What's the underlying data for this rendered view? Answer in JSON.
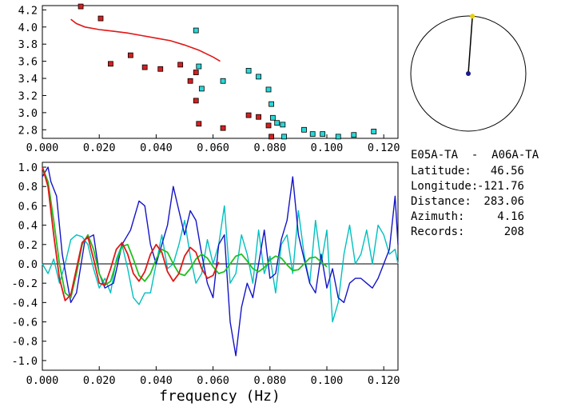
{
  "info_panel": {
    "station_pair": "E05A-TA  -  A06A-TA",
    "rows": [
      {
        "label": "Latitude:",
        "value": "46.56"
      },
      {
        "label": "Longitude:",
        "value": "-121.76"
      },
      {
        "label": "Distance:",
        "value": "283.06"
      },
      {
        "label": "Azimuth:",
        "value": "4.16"
      },
      {
        "label": "Records:",
        "value": "208"
      }
    ]
  },
  "azimuth_compass": {
    "azimuth_deg": 4.16,
    "colors": {
      "circle": "#000000",
      "needle": "#000000",
      "center": "#1a1a8c",
      "tip": "#e8d000"
    }
  },
  "chart_data": [
    {
      "type": "scatter",
      "xlim": [
        0.0,
        0.125
      ],
      "ylim": [
        2.7,
        4.25
      ],
      "x_ticks": [
        "0.000",
        "0.020",
        "0.040",
        "0.060",
        "0.080",
        "0.100",
        "0.120"
      ],
      "y_ticks": [
        "2.8",
        "3.0",
        "3.2",
        "3.4",
        "3.6",
        "3.8",
        "4.0",
        "4.2"
      ],
      "grid": false,
      "series": [
        {
          "kind": "points",
          "color": "#d42020",
          "points": [
            [
              0.0135,
              4.24
            ],
            [
              0.0205,
              4.1
            ],
            [
              0.024,
              3.57
            ],
            [
              0.031,
              3.67
            ],
            [
              0.036,
              3.53
            ],
            [
              0.0415,
              3.51
            ],
            [
              0.0485,
              3.56
            ],
            [
              0.052,
              3.37
            ],
            [
              0.054,
              3.47
            ],
            [
              0.054,
              3.14
            ],
            [
              0.055,
              2.87
            ],
            [
              0.0635,
              2.82
            ],
            [
              0.0725,
              2.97
            ],
            [
              0.076,
              2.95
            ],
            [
              0.0795,
              2.85
            ],
            [
              0.0805,
              2.72
            ]
          ]
        },
        {
          "kind": "points",
          "color": "#28d8d8",
          "points": [
            [
              0.054,
              3.96
            ],
            [
              0.055,
              3.54
            ],
            [
              0.056,
              3.28
            ],
            [
              0.0635,
              3.37
            ],
            [
              0.0725,
              3.49
            ],
            [
              0.076,
              3.42
            ],
            [
              0.0795,
              3.27
            ],
            [
              0.0805,
              3.1
            ],
            [
              0.081,
              2.94
            ],
            [
              0.0825,
              2.88
            ],
            [
              0.0845,
              2.86
            ],
            [
              0.085,
              2.72
            ],
            [
              0.092,
              2.8
            ],
            [
              0.095,
              2.75
            ],
            [
              0.0985,
              2.75
            ],
            [
              0.104,
              2.72
            ],
            [
              0.1095,
              2.74
            ],
            [
              0.1165,
              2.78
            ]
          ]
        },
        {
          "kind": "line",
          "color": "#e01818",
          "points": [
            [
              0.01,
              4.09
            ],
            [
              0.012,
              4.04
            ],
            [
              0.015,
              4.0
            ],
            [
              0.02,
              3.97
            ],
            [
              0.025,
              3.95
            ],
            [
              0.03,
              3.93
            ],
            [
              0.035,
              3.9
            ],
            [
              0.04,
              3.87
            ],
            [
              0.045,
              3.84
            ],
            [
              0.05,
              3.79
            ],
            [
              0.055,
              3.73
            ],
            [
              0.06,
              3.65
            ],
            [
              0.0625,
              3.6
            ]
          ]
        }
      ]
    },
    {
      "type": "line",
      "xlabel": "frequency (Hz)",
      "xlim": [
        0.0,
        0.125
      ],
      "ylim": [
        -1.1,
        1.05
      ],
      "x_ticks": [
        "0.000",
        "0.020",
        "0.040",
        "0.060",
        "0.080",
        "0.100",
        "0.120"
      ],
      "y_ticks": [
        "1.0",
        "0.8",
        "0.6",
        "0.4",
        "0.2",
        "0.0",
        "-0.2",
        "-0.4",
        "-0.6",
        "-0.8",
        "-1.0"
      ],
      "grid": false,
      "zero_line": true,
      "series": [
        {
          "color": "#00c0c0",
          "x": [
            0.0,
            0.002,
            0.004,
            0.006,
            0.008,
            0.01,
            0.012,
            0.014,
            0.016,
            0.018,
            0.02,
            0.022,
            0.024,
            0.026,
            0.028,
            0.03,
            0.032,
            0.034,
            0.036,
            0.038,
            0.04,
            0.042,
            0.044,
            0.046,
            0.048,
            0.05,
            0.052,
            0.054,
            0.056,
            0.058,
            0.06,
            0.062,
            0.064,
            0.066,
            0.068,
            0.07,
            0.072,
            0.074,
            0.076,
            0.078,
            0.08,
            0.082,
            0.084,
            0.086,
            0.088,
            0.09,
            0.092,
            0.094,
            0.096,
            0.098,
            0.1,
            0.102,
            0.104,
            0.106,
            0.108,
            0.11,
            0.112,
            0.114,
            0.116,
            0.118,
            0.12,
            0.122,
            0.124,
            0.125
          ],
          "y": [
            0.0,
            -0.1,
            0.05,
            -0.2,
            0.0,
            0.25,
            0.3,
            0.28,
            0.2,
            -0.05,
            -0.25,
            -0.15,
            -0.3,
            0.05,
            0.2,
            -0.05,
            -0.35,
            -0.42,
            -0.3,
            -0.3,
            0.0,
            0.3,
            -0.05,
            0.0,
            0.2,
            0.45,
            0.08,
            -0.2,
            -0.1,
            0.25,
            0.0,
            0.2,
            0.6,
            -0.2,
            -0.1,
            0.3,
            0.1,
            -0.2,
            0.35,
            -0.1,
            0.08,
            -0.3,
            0.2,
            0.3,
            -0.1,
            0.55,
            0.1,
            -0.2,
            0.45,
            0.0,
            0.35,
            -0.6,
            -0.4,
            0.1,
            0.4,
            0.0,
            0.1,
            0.35,
            0.0,
            0.4,
            0.3,
            0.1,
            0.15,
            0.0
          ]
        },
        {
          "color": "#1414c8",
          "x": [
            0.0,
            0.002,
            0.003,
            0.005,
            0.007,
            0.01,
            0.012,
            0.015,
            0.018,
            0.02,
            0.022,
            0.025,
            0.028,
            0.031,
            0.034,
            0.036,
            0.038,
            0.04,
            0.042,
            0.044,
            0.046,
            0.048,
            0.05,
            0.052,
            0.054,
            0.056,
            0.058,
            0.06,
            0.062,
            0.064,
            0.066,
            0.068,
            0.07,
            0.072,
            0.074,
            0.076,
            0.078,
            0.08,
            0.082,
            0.084,
            0.086,
            0.088,
            0.09,
            0.092,
            0.094,
            0.096,
            0.098,
            0.1,
            0.102,
            0.104,
            0.106,
            0.108,
            0.11,
            0.112,
            0.114,
            0.116,
            0.118,
            0.12,
            0.122,
            0.124,
            0.125
          ],
          "y": [
            0.9,
            1.0,
            0.85,
            0.7,
            0.1,
            -0.4,
            -0.3,
            0.25,
            0.3,
            -0.1,
            -0.25,
            -0.2,
            0.2,
            0.35,
            0.65,
            0.6,
            0.2,
            0.0,
            0.2,
            0.4,
            0.8,
            0.55,
            0.3,
            0.55,
            0.45,
            0.1,
            -0.2,
            -0.35,
            0.2,
            0.3,
            -0.6,
            -0.95,
            -0.45,
            -0.2,
            -0.35,
            0.0,
            0.35,
            -0.15,
            -0.1,
            0.25,
            0.45,
            0.9,
            0.3,
            0.05,
            -0.2,
            -0.3,
            0.1,
            -0.25,
            -0.05,
            -0.35,
            -0.4,
            -0.2,
            -0.15,
            -0.15,
            -0.2,
            -0.25,
            -0.15,
            0.0,
            0.15,
            0.7,
            0.2
          ]
        },
        {
          "color": "#20c020",
          "x": [
            0.0,
            0.002,
            0.004,
            0.006,
            0.008,
            0.01,
            0.012,
            0.014,
            0.016,
            0.018,
            0.02,
            0.022,
            0.024,
            0.026,
            0.028,
            0.03,
            0.032,
            0.034,
            0.036,
            0.038,
            0.04,
            0.042,
            0.044,
            0.046,
            0.048,
            0.05,
            0.052,
            0.054,
            0.056,
            0.058,
            0.06,
            0.062,
            0.064,
            0.066,
            0.068,
            0.07,
            0.072,
            0.074,
            0.076,
            0.078,
            0.08,
            0.082,
            0.084,
            0.086,
            0.088,
            0.09,
            0.092,
            0.094,
            0.096,
            0.098,
            0.1
          ],
          "y": [
            1.0,
            0.85,
            0.45,
            0.0,
            -0.3,
            -0.35,
            -0.1,
            0.2,
            0.3,
            0.15,
            -0.1,
            -0.22,
            -0.18,
            0.02,
            0.18,
            0.2,
            0.05,
            -0.12,
            -0.18,
            -0.1,
            0.05,
            0.15,
            0.12,
            0.0,
            -0.1,
            -0.12,
            -0.05,
            0.05,
            0.1,
            0.06,
            -0.03,
            -0.1,
            -0.08,
            0.0,
            0.08,
            0.1,
            0.03,
            -0.05,
            -0.08,
            -0.04,
            0.04,
            0.08,
            0.06,
            -0.01,
            -0.07,
            -0.06,
            0.0,
            0.06,
            0.07,
            0.02,
            -0.03
          ]
        },
        {
          "color": "#e01818",
          "x": [
            0.0,
            0.002,
            0.004,
            0.006,
            0.008,
            0.01,
            0.012,
            0.014,
            0.016,
            0.018,
            0.02,
            0.022,
            0.024,
            0.026,
            0.028,
            0.03,
            0.032,
            0.034,
            0.036,
            0.038,
            0.04,
            0.042,
            0.044,
            0.046,
            0.048,
            0.05,
            0.052,
            0.054,
            0.056,
            0.058,
            0.06,
            0.062
          ],
          "y": [
            1.0,
            0.8,
            0.3,
            -0.15,
            -0.38,
            -0.32,
            -0.05,
            0.22,
            0.28,
            0.05,
            -0.2,
            -0.22,
            -0.05,
            0.15,
            0.22,
            0.1,
            -0.1,
            -0.18,
            -0.08,
            0.1,
            0.2,
            0.12,
            -0.08,
            -0.18,
            -0.1,
            0.08,
            0.17,
            0.12,
            -0.05,
            -0.15,
            -0.12,
            0.02
          ]
        }
      ]
    }
  ]
}
